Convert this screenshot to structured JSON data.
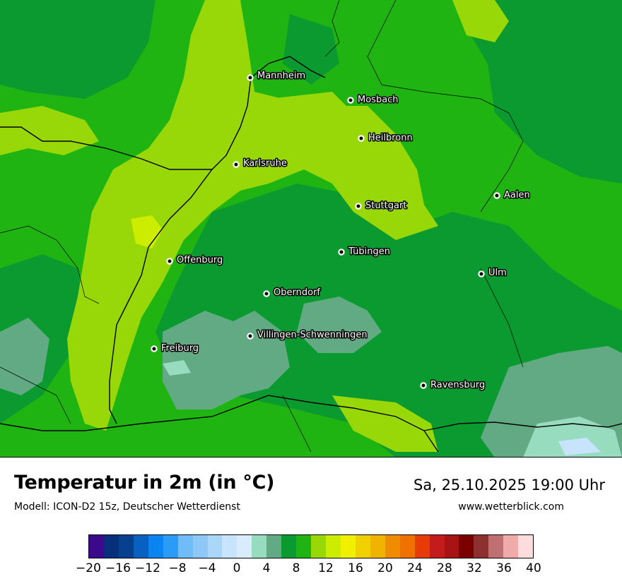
{
  "map": {
    "cities": [
      {
        "name": "Mannheim"
      },
      {
        "name": "Mosbach"
      },
      {
        "name": "Heilbronn"
      },
      {
        "name": "Karlsruhe"
      },
      {
        "name": "Aalen"
      },
      {
        "name": "Stuttgart"
      },
      {
        "name": "Tübingen"
      },
      {
        "name": "Offenburg"
      },
      {
        "name": "Ulm"
      },
      {
        "name": "Oberndorf"
      },
      {
        "name": "Villingen-Schwenningen"
      },
      {
        "name": "Freiburg"
      },
      {
        "name": "Ravensburg"
      }
    ]
  },
  "footer": {
    "title": "Temperatur in 2m (in °C)",
    "model": "Modell: ICON-D2 15z, Deutscher Wetterdienst",
    "datetime": "Sa, 25.10.2025 19:00 Uhr",
    "website": "www.wetterblick.com"
  },
  "legend": {
    "colors": [
      "#3b0a8c",
      "#07307a",
      "#06408f",
      "#0860c0",
      "#0a84f0",
      "#2a9cf8",
      "#70bcf8",
      "#8ec8f8",
      "#aad6fa",
      "#c8e4fc",
      "#d8ecfc",
      "#98dcc0",
      "#62aa84",
      "#0a9a30",
      "#20b412",
      "#98d808",
      "#ccec00",
      "#f0f000",
      "#f0d000",
      "#f0b400",
      "#f08c00",
      "#f07000",
      "#e83c08",
      "#c41c1c",
      "#a81414",
      "#7a0000",
      "#8c3030",
      "#c07070",
      "#f0aaaa",
      "#fcdcdc"
    ],
    "ticks": [
      "−20",
      "−16",
      "−12",
      "−8",
      "−4",
      "0",
      "4",
      "8",
      "12",
      "16",
      "20",
      "24",
      "28",
      "32",
      "36",
      "40"
    ],
    "min": -20,
    "max": 40
  }
}
